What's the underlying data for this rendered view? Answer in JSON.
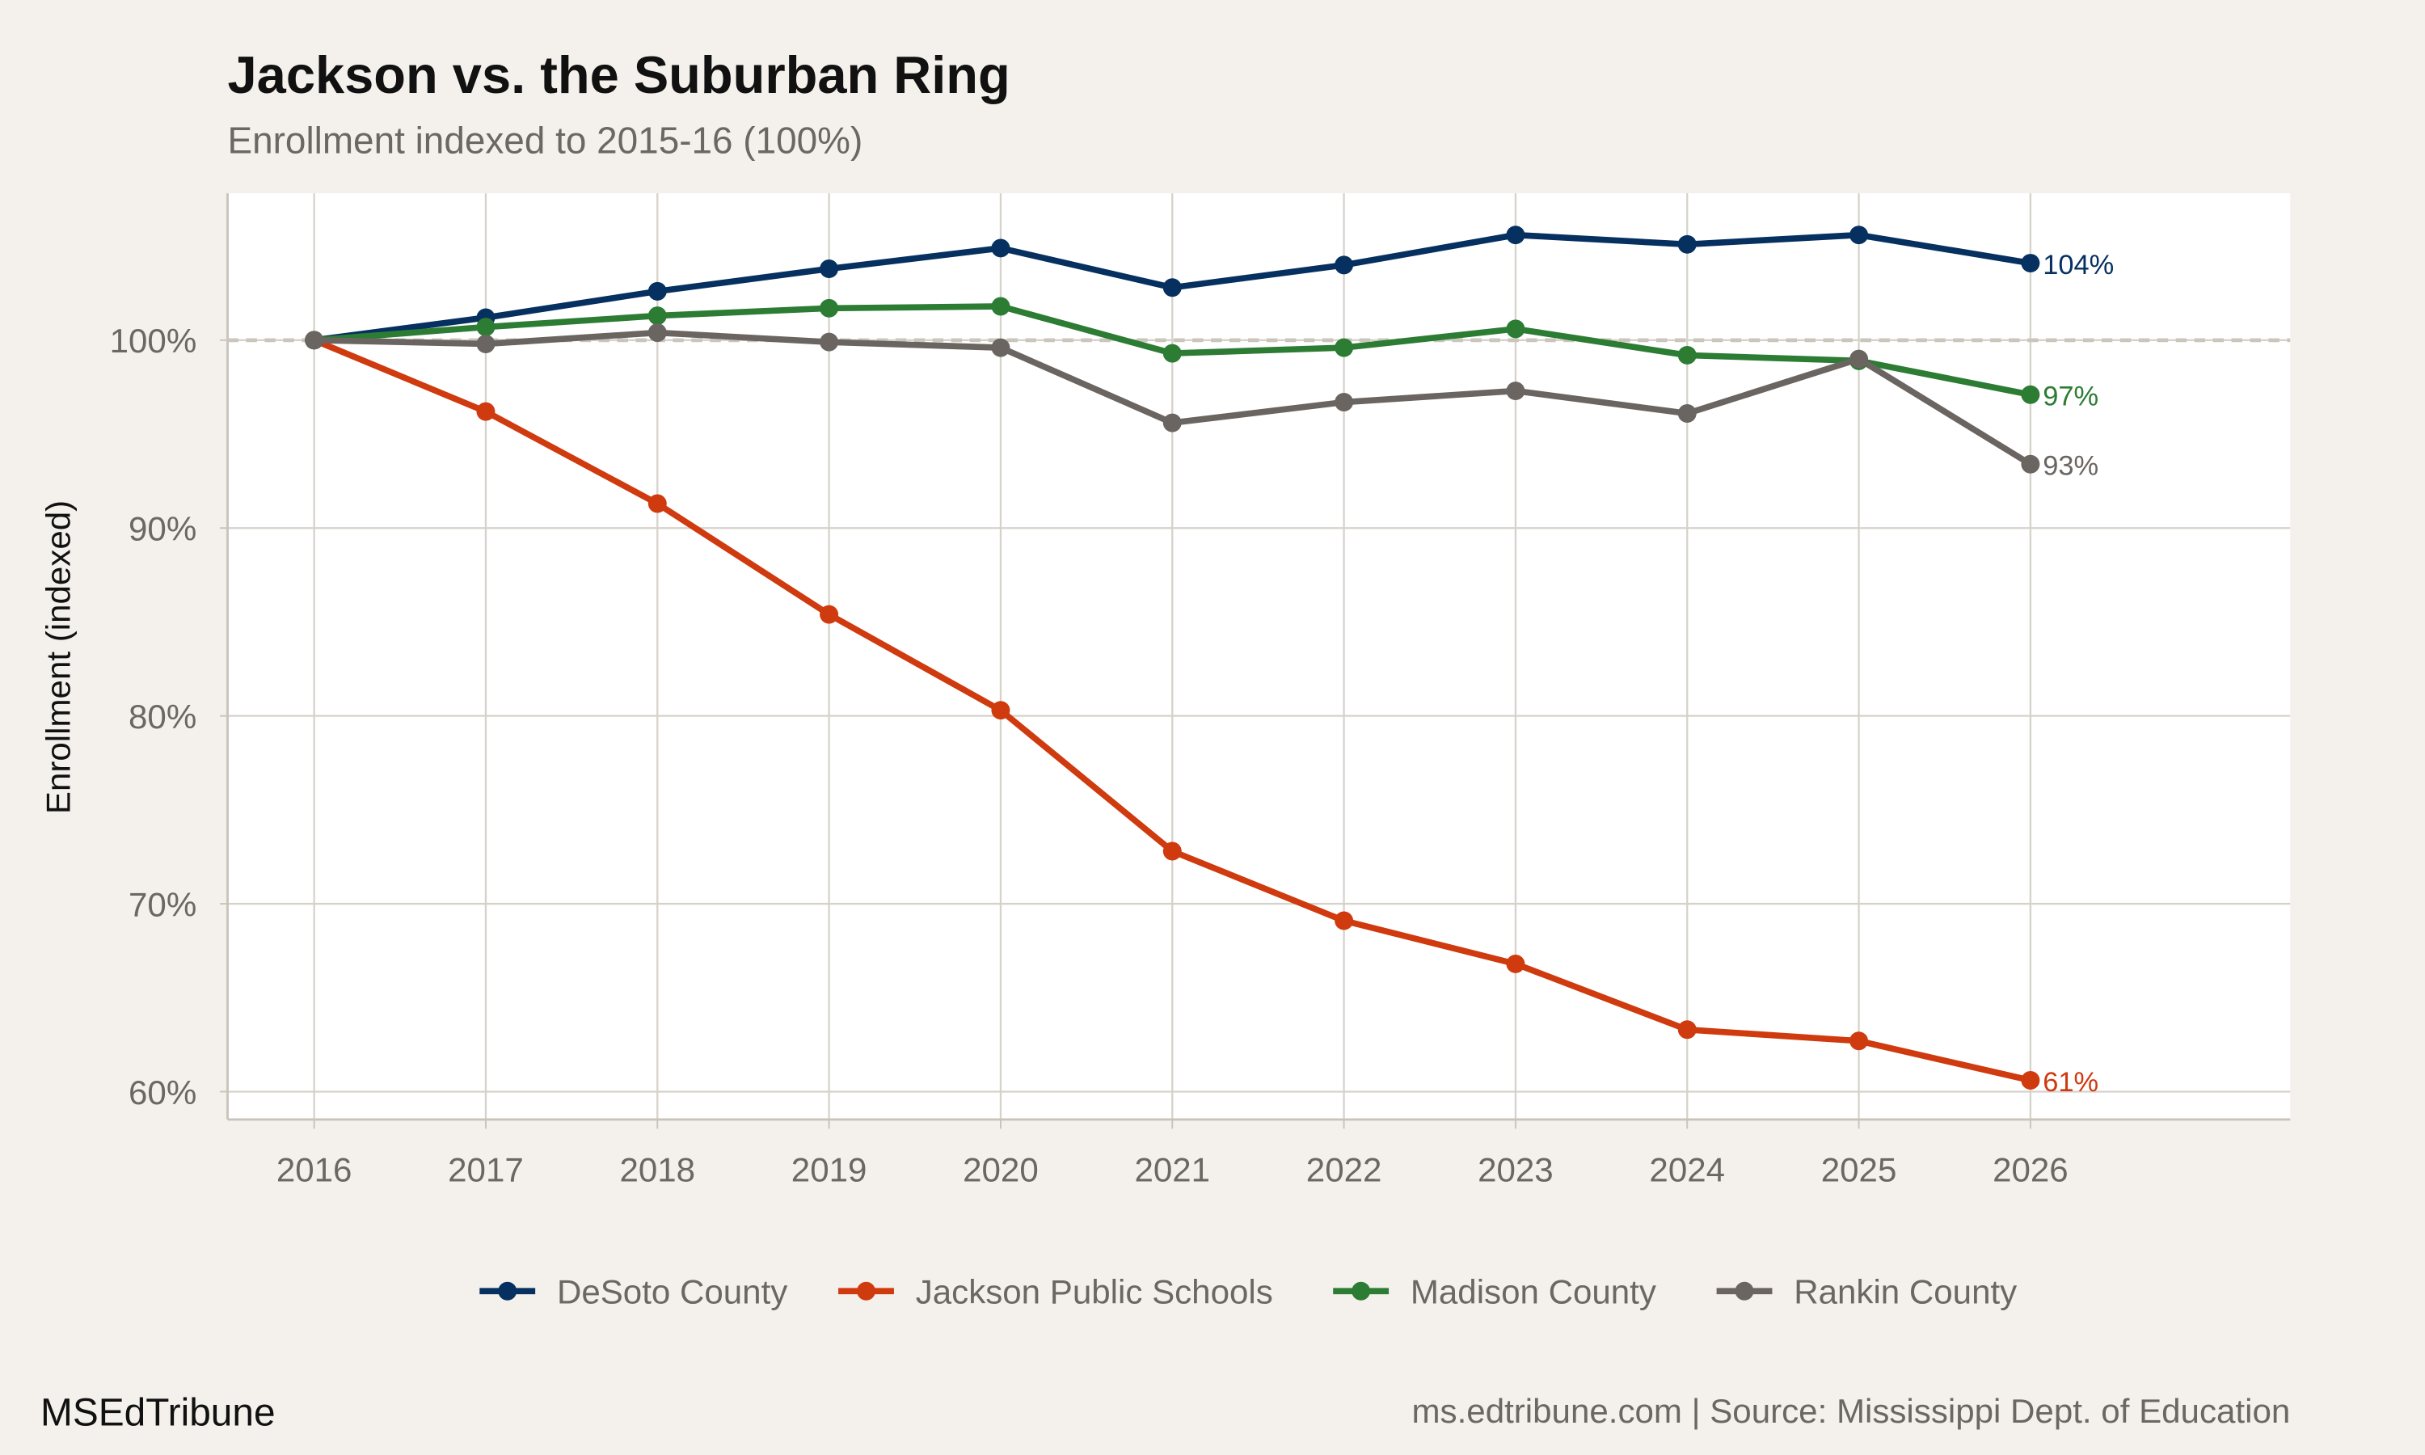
{
  "chart_data": {
    "type": "line",
    "title": "Jackson vs. the Suburban Ring",
    "subtitle": "Enrollment indexed to 2015-16 (100%)",
    "xlabel": "",
    "ylabel": "Enrollment (indexed)",
    "x": [
      2016,
      2017,
      2018,
      2019,
      2020,
      2021,
      2022,
      2023,
      2024,
      2025,
      2026
    ],
    "xlim": [
      2015.5,
      2027.5
    ],
    "ylim": [
      58.5,
      107.8
    ],
    "yticks": [
      60,
      70,
      80,
      90,
      100
    ],
    "ytick_labels": [
      "60%",
      "70%",
      "80%",
      "90%",
      "100%"
    ],
    "xtick_labels": [
      "2016",
      "2017",
      "2018",
      "2019",
      "2020",
      "2021",
      "2022",
      "2023",
      "2024",
      "2025",
      "2026"
    ],
    "reference_line": 100,
    "grid": true,
    "legend_position": "bottom",
    "series": [
      {
        "name": "DeSoto County",
        "color": "#06305f",
        "end_label": "104%",
        "values": [
          100,
          101.2,
          102.6,
          103.8,
          104.9,
          102.8,
          104.0,
          105.6,
          105.1,
          105.6,
          104.1
        ]
      },
      {
        "name": "Jackson Public Schools",
        "color": "#cf3a0e",
        "end_label": "61%",
        "values": [
          100,
          96.2,
          91.3,
          85.4,
          80.3,
          72.8,
          69.1,
          66.8,
          63.3,
          62.7,
          60.6
        ]
      },
      {
        "name": "Madison County",
        "color": "#2c7c33",
        "end_label": "97%",
        "values": [
          100,
          100.7,
          101.3,
          101.7,
          101.8,
          99.3,
          99.6,
          100.6,
          99.2,
          98.9,
          97.1
        ]
      },
      {
        "name": "Rankin County",
        "color": "#6a6560",
        "end_label": "93%",
        "values": [
          100,
          99.8,
          100.4,
          99.9,
          99.6,
          95.6,
          96.7,
          97.3,
          96.1,
          99.0,
          93.4
        ]
      }
    ]
  },
  "footer": {
    "brand": "MSEdTribune",
    "caption": "ms.edtribune.com | Source: Mississippi Dept. of Education"
  }
}
